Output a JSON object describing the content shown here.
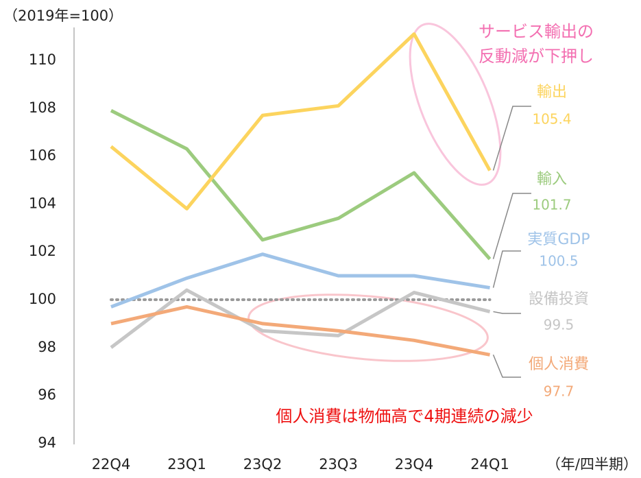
{
  "chart_data": {
    "type": "line",
    "y_axis_label": "（2019年=100）",
    "x_axis_label": "（年/四半期）",
    "categories": [
      "22Q4",
      "23Q1",
      "23Q2",
      "23Q3",
      "23Q4",
      "24Q1"
    ],
    "ylim": [
      94,
      111.5
    ],
    "yticks": [
      94,
      96,
      98,
      100,
      102,
      104,
      106,
      108,
      110
    ],
    "reference_line": 100,
    "series": [
      {
        "name": "輸出",
        "color": "#fcd45e",
        "values": [
          106.4,
          103.8,
          107.7,
          108.1,
          111.1,
          105.4
        ]
      },
      {
        "name": "輸入",
        "color": "#9ccb7e",
        "values": [
          107.9,
          106.3,
          102.5,
          103.4,
          105.3,
          101.7
        ]
      },
      {
        "name": "実質GDP",
        "color": "#9fc3e8",
        "values": [
          99.7,
          100.9,
          101.9,
          101.0,
          101.0,
          100.5
        ]
      },
      {
        "name": "設備投資",
        "color": "#c6c6c6",
        "values": [
          98.0,
          100.4,
          98.7,
          98.5,
          100.3,
          99.5
        ]
      },
      {
        "name": "個人消費",
        "color": "#f3a978",
        "values": [
          99.0,
          99.7,
          99.0,
          98.7,
          98.3,
          97.7
        ]
      }
    ],
    "annotations": [
      {
        "lines": [
          "サービス輸出の",
          "反動減が下押し"
        ],
        "color": "#f36fb1"
      },
      {
        "lines": [
          "個人消費は物価高で4期連続の減少"
        ],
        "color": "#ee1111"
      }
    ]
  }
}
